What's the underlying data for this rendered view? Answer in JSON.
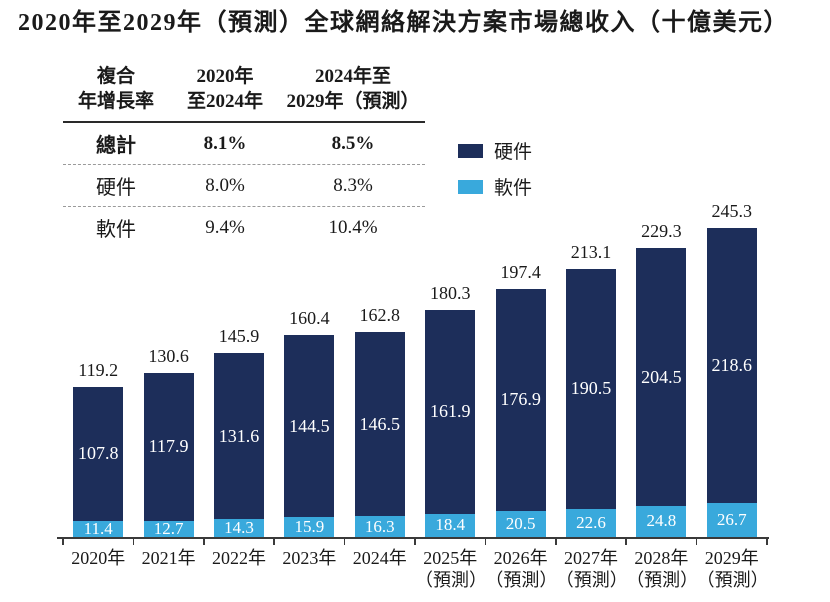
{
  "title": "2020年至2029年（預測）全球網絡解決方案市場總收入（十億美元）",
  "cagr_table": {
    "header": {
      "metric_line1": "複合",
      "metric_line2": "年增長率",
      "period1_line1": "2020年",
      "period1_line2": "至2024年",
      "period2_line1": "2024年至",
      "period2_line2": "2029年（預測）"
    },
    "rows": [
      {
        "label": "總計",
        "period1": "8.1%",
        "period2": "8.5%"
      },
      {
        "label": "硬件",
        "period1": "8.0%",
        "period2": "8.3%"
      },
      {
        "label": "軟件",
        "period1": "9.4%",
        "period2": "10.4%"
      }
    ]
  },
  "legend": {
    "items": [
      {
        "label": "硬件",
        "color": "#1d2e5a"
      },
      {
        "label": "軟件",
        "color": "#39a9dc"
      }
    ]
  },
  "chart_data": {
    "type": "bar",
    "stacked": true,
    "title": "2020年至2029年（預測）全球網絡解決方案市場總收入（十億美元）",
    "unit": "十億美元",
    "categories": [
      "2020年",
      "2021年",
      "2022年",
      "2023年",
      "2024年",
      "2025年（預測）",
      "2026年（預測）",
      "2027年（預測）",
      "2028年（預測）",
      "2029年（預測）"
    ],
    "series": [
      {
        "name": "硬件",
        "color": "#1d2e5a",
        "values": [
          107.8,
          117.9,
          131.6,
          144.5,
          146.5,
          161.9,
          176.9,
          190.5,
          204.5,
          218.6
        ]
      },
      {
        "name": "軟件",
        "color": "#39a9dc",
        "values": [
          11.4,
          12.7,
          14.3,
          15.9,
          16.3,
          18.4,
          20.5,
          22.6,
          24.8,
          26.7
        ]
      }
    ],
    "totals": [
      119.2,
      130.6,
      145.9,
      160.4,
      162.8,
      180.3,
      197.4,
      213.1,
      229.3,
      245.3
    ],
    "ylim": [
      0,
      260
    ],
    "grid": false,
    "legend_position": "upper-right",
    "value_labels": true
  }
}
